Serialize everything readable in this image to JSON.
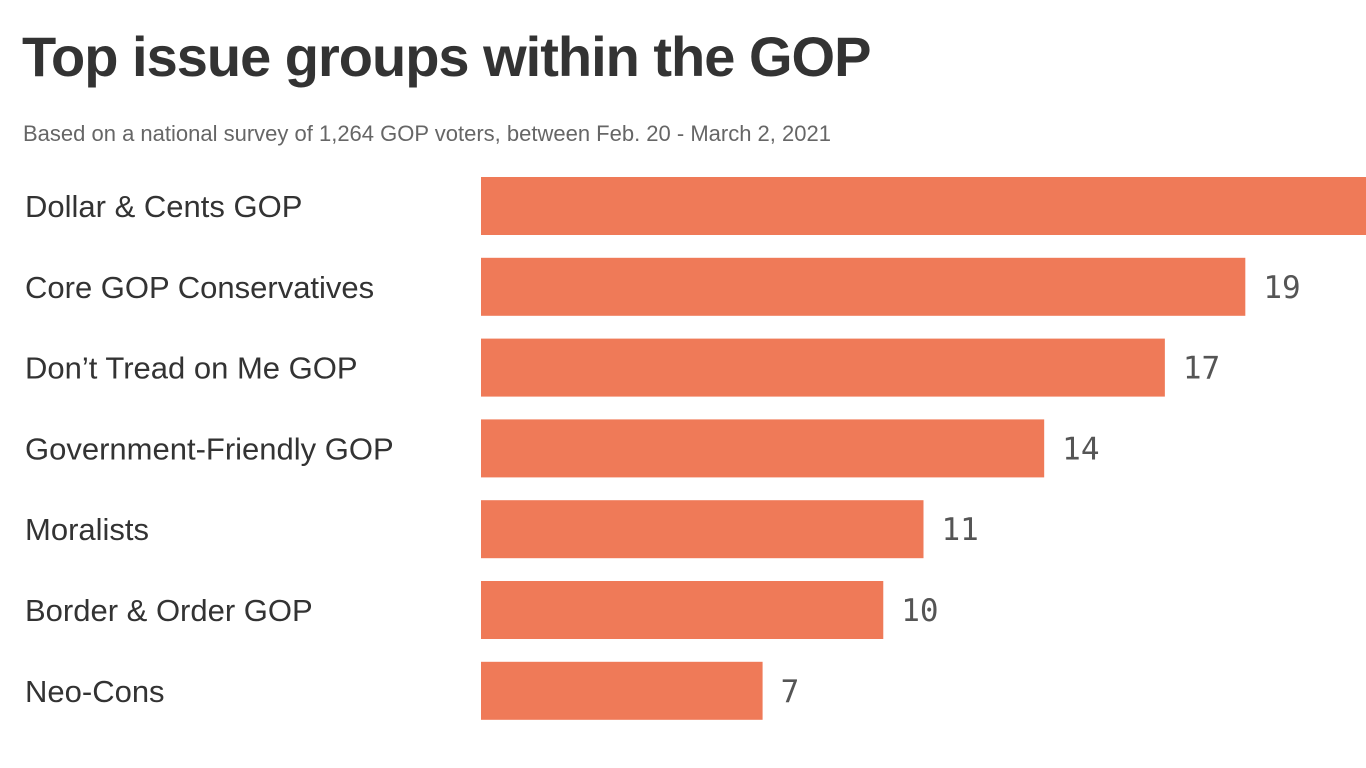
{
  "chart_data": {
    "type": "bar",
    "orientation": "horizontal",
    "title": "Top issue groups within the GOP",
    "subtitle": "Based on a national survey of 1,264 GOP voters, between Feb. 20 - March 2, 2021",
    "categories": [
      "Dollar & Cents GOP",
      "Core GOP Conservatives",
      "Don’t Tread on Me GOP",
      "Government-Friendly GOP",
      "Moralists",
      "Border & Order GOP",
      "Neo-Cons"
    ],
    "values": [
      22,
      19,
      17,
      14,
      11,
      10,
      7
    ],
    "value_labels": [
      "",
      "19",
      "17",
      "14",
      "11",
      "10",
      "7"
    ],
    "bar_color": "#EF7A58",
    "xlim": [
      0,
      22
    ],
    "grid": false,
    "legend": "none"
  }
}
